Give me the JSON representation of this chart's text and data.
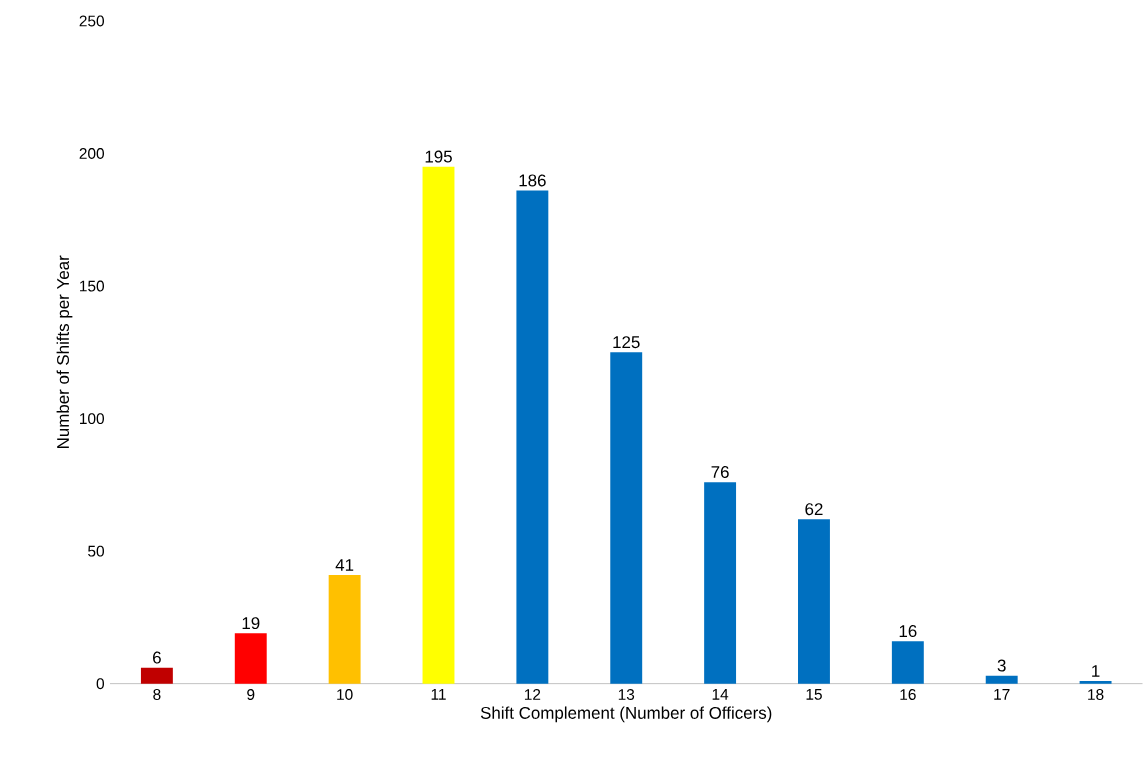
{
  "chart_data": {
    "type": "bar",
    "xlabel": "Shift Complement (Number of Officers)",
    "ylabel": "Number of Shifts per Year",
    "categories": [
      "8",
      "9",
      "10",
      "11",
      "12",
      "13",
      "14",
      "15",
      "16",
      "17",
      "18"
    ],
    "values": [
      6,
      19,
      41,
      195,
      186,
      125,
      76,
      62,
      16,
      3,
      1
    ],
    "colors": [
      "#c00000",
      "#ff0000",
      "#ffc000",
      "#ffff00",
      "#0070c0",
      "#0070c0",
      "#0070c0",
      "#0070c0",
      "#0070c0",
      "#0070c0",
      "#0070c0"
    ],
    "ylim": [
      0,
      250
    ],
    "yticks": [
      0,
      50,
      100,
      150,
      200,
      250
    ],
    "data_labels": true
  }
}
